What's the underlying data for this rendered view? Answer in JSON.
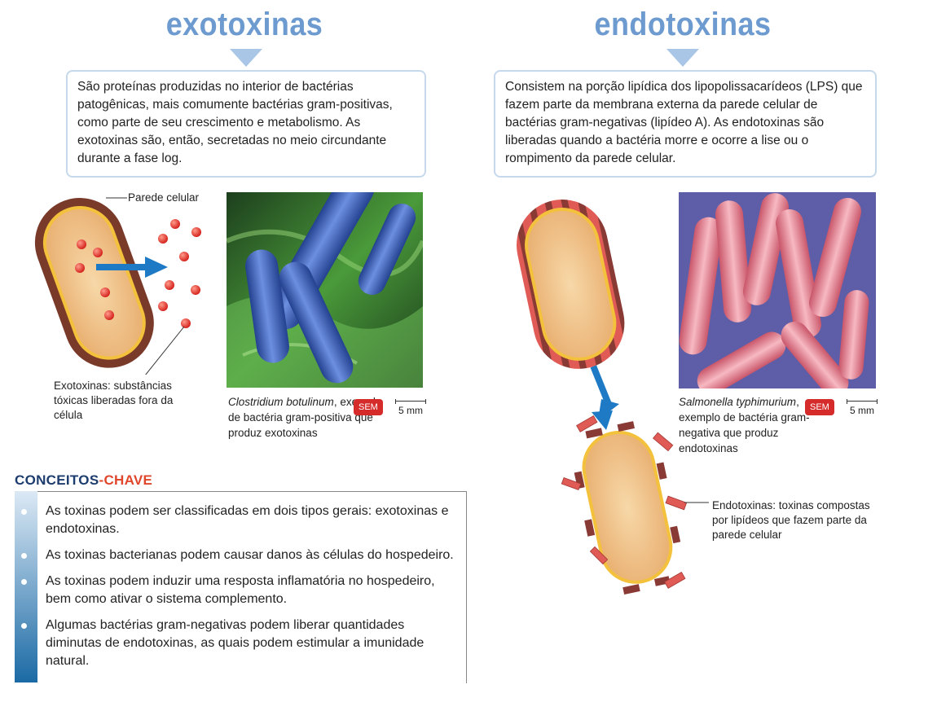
{
  "left": {
    "title": "exotoxinas",
    "description": "São proteínas produzidas no interior de bactérias patogênicas, mais comumente bactérias gram-positivas, como parte de seu crescimento e metabolismo. As exotoxinas são, então, secretadas no meio circundante durante a fase log.",
    "label_wall": "Parede celular",
    "label_toxins": "Exotoxinas: substâncias tóxicas liberadas fora da célula",
    "caption_species": "Clostridium botulinum",
    "caption_rest": ", exemplo de bactéria gram-positiva que produz exotoxinas",
    "badge": "SEM",
    "scale": "5 mm"
  },
  "right": {
    "title": "endotoxinas",
    "description": "Consistem na porção lipídica dos lipopolissacarídeos (LPS) que fazem parte da membrana externa da parede celular de bactérias gram-negativas (lipídeo A). As endotoxinas são liberadas quando a bactéria morre e ocorre a lise ou o rompimento da parede celular.",
    "caption_species": "Salmonella typhimurium",
    "caption_rest": ", exemplo de bactéria gram-negativa que produz endotoxinas",
    "badge": "SEM",
    "scale": "5 mm",
    "label_endotoxins": "Endotoxinas: toxinas compostas por lipídeos que fazem parte da parede celular"
  },
  "key_concepts": {
    "heading_a": "CONCEITOS",
    "heading_sep": "-",
    "heading_b": "CHAVE",
    "items": [
      "As toxinas podem ser classificadas em dois tipos gerais: exotoxinas e endotoxinas.",
      "As toxinas bacterianas podem causar danos às células do hospedeiro.",
      "As toxinas podem induzir uma resposta inflamatória no hospedeiro, bem como ativar o sistema complemento.",
      "Algumas bactérias gram-negativas podem liberar quantidades diminutas de endotoxinas, as quais podem estimular a imunidade natural."
    ]
  },
  "colors": {
    "title": "#6d9bd0",
    "heading_dark": "#1d3d6e",
    "heading_accent": "#e0462b",
    "sem_badge": "#d62b2b",
    "arrow": "#1e7ac4"
  }
}
